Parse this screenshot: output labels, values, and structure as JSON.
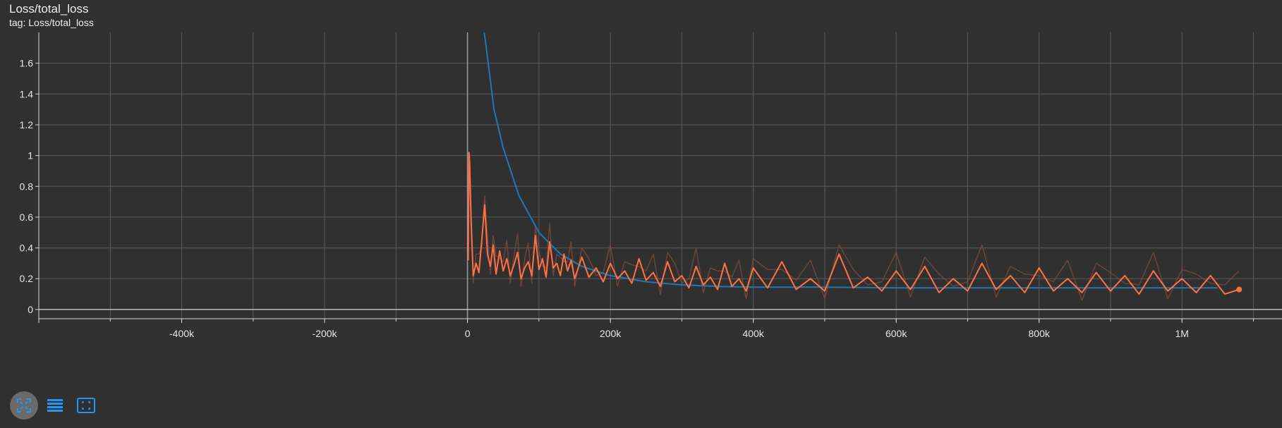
{
  "header": {
    "title": "Loss/total_loss",
    "subtitle": "tag: Loss/total_loss"
  },
  "toolbar": {
    "buttons": [
      {
        "icon": "fit-domain-icon",
        "active": true
      },
      {
        "icon": "log-scale-lines-icon",
        "active": false
      },
      {
        "icon": "expand-chart-icon",
        "active": false
      }
    ]
  },
  "colors": {
    "background": "#303030",
    "grid": "#5a5a5a",
    "axis": "#d8d8d8",
    "series_orange": "#ff7043",
    "series_orange_raw": "#7a4a3a",
    "series_blue": "#1f77b4",
    "series_blue_raw": "#1b4d6e",
    "button_accent": "#2196f3"
  },
  "chart_data": {
    "type": "line",
    "title": "Loss/total_loss",
    "xlabel": "",
    "ylabel": "",
    "xlim": [
      -600000,
      1140000
    ],
    "ylim": [
      -0.06,
      1.8
    ],
    "x_ticks": [
      -400000,
      -200000,
      0,
      200000,
      400000,
      600000,
      800000,
      1000000
    ],
    "x_tick_labels": [
      "-400k",
      "-200k",
      "0",
      "200k",
      "400k",
      "600k",
      "800k",
      "1M"
    ],
    "y_ticks": [
      0,
      0.2,
      0.4,
      0.6,
      0.8,
      1.0,
      1.2,
      1.4,
      1.6
    ],
    "y_tick_labels": [
      "0",
      "0.2",
      "0.4",
      "0.6",
      "0.8",
      "1",
      "1.2",
      "1.4",
      "1.6"
    ],
    "grid": true,
    "series": [
      {
        "color": "#1f77b4",
        "x": [
          10000,
          25000,
          37000,
          50000,
          72000,
          100000,
          130000,
          160000,
          200000,
          250000,
          300000,
          350000,
          400000,
          500000,
          600000,
          700000,
          800000,
          900000,
          1000000,
          1050000
        ],
        "y": [
          2.2,
          1.75,
          1.3,
          1.05,
          0.74,
          0.5,
          0.36,
          0.28,
          0.22,
          0.18,
          0.16,
          0.15,
          0.145,
          0.145,
          0.14,
          0.14,
          0.14,
          0.14,
          0.14,
          0.14
        ]
      },
      {
        "color": "#ff7043",
        "x": [
          1000,
          2000,
          3000,
          5000,
          8000,
          12000,
          16000,
          20000,
          24000,
          28000,
          32000,
          36000,
          40000,
          45000,
          50000,
          55000,
          60000,
          65000,
          70000,
          75000,
          80000,
          85000,
          90000,
          95000,
          100000,
          105000,
          110000,
          115000,
          120000,
          125000,
          130000,
          135000,
          140000,
          145000,
          150000,
          160000,
          170000,
          180000,
          190000,
          200000,
          210000,
          220000,
          230000,
          240000,
          250000,
          260000,
          270000,
          280000,
          290000,
          300000,
          310000,
          320000,
          330000,
          340000,
          350000,
          360000,
          370000,
          380000,
          390000,
          400000,
          420000,
          440000,
          460000,
          480000,
          500000,
          520000,
          540000,
          560000,
          580000,
          600000,
          620000,
          640000,
          660000,
          680000,
          700000,
          720000,
          740000,
          760000,
          780000,
          800000,
          820000,
          840000,
          860000,
          880000,
          900000,
          920000,
          940000,
          960000,
          980000,
          1000000,
          1020000,
          1040000,
          1060000,
          1080000
        ],
        "y": [
          0.32,
          1.02,
          0.95,
          0.58,
          0.22,
          0.3,
          0.24,
          0.45,
          0.68,
          0.36,
          0.28,
          0.42,
          0.23,
          0.38,
          0.25,
          0.33,
          0.22,
          0.29,
          0.37,
          0.2,
          0.27,
          0.31,
          0.22,
          0.48,
          0.26,
          0.33,
          0.21,
          0.44,
          0.27,
          0.3,
          0.22,
          0.36,
          0.25,
          0.32,
          0.2,
          0.34,
          0.21,
          0.27,
          0.18,
          0.3,
          0.2,
          0.25,
          0.17,
          0.33,
          0.19,
          0.24,
          0.15,
          0.31,
          0.18,
          0.22,
          0.14,
          0.28,
          0.16,
          0.21,
          0.13,
          0.3,
          0.15,
          0.2,
          0.12,
          0.27,
          0.14,
          0.31,
          0.13,
          0.2,
          0.12,
          0.36,
          0.14,
          0.21,
          0.12,
          0.25,
          0.13,
          0.28,
          0.11,
          0.2,
          0.12,
          0.3,
          0.13,
          0.22,
          0.11,
          0.27,
          0.12,
          0.2,
          0.11,
          0.24,
          0.12,
          0.22,
          0.1,
          0.25,
          0.12,
          0.2,
          0.11,
          0.22,
          0.1,
          0.13
        ]
      }
    ]
  }
}
